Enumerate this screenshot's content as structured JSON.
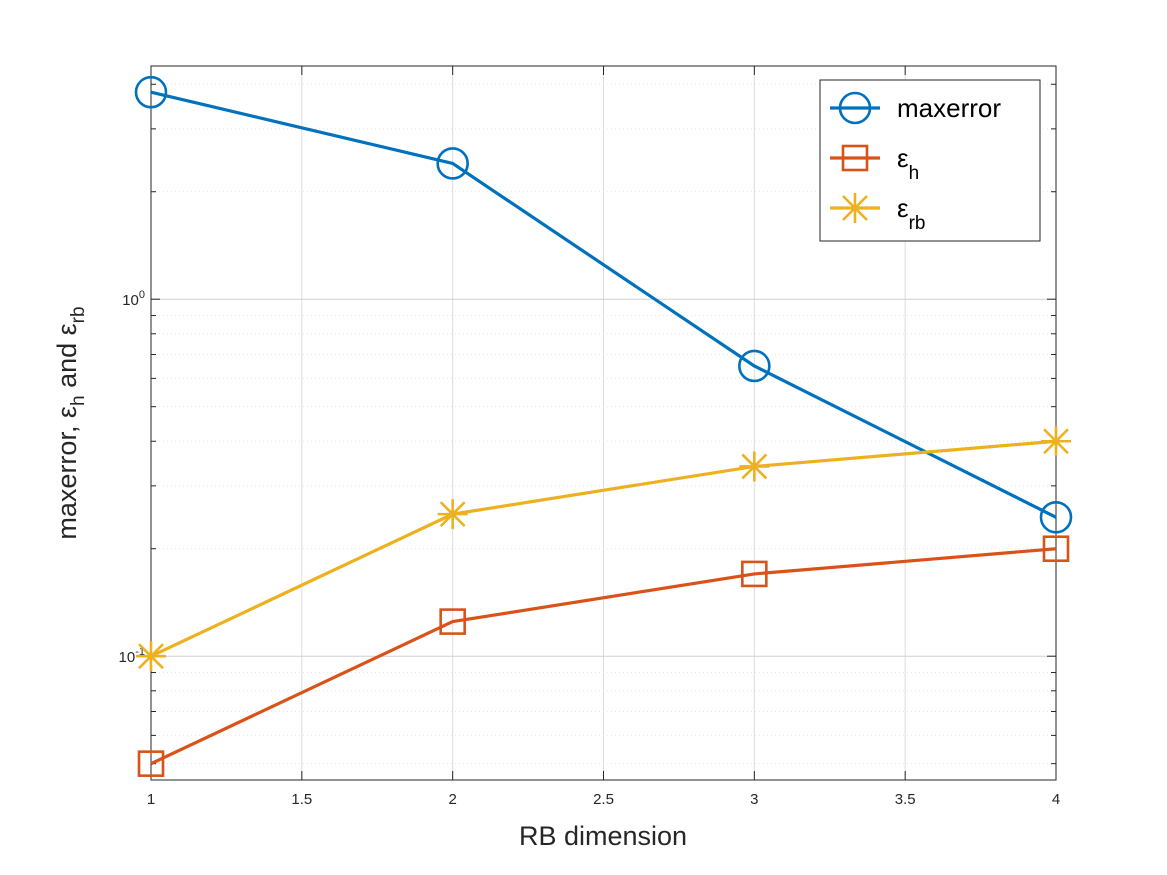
{
  "chart_data": {
    "type": "line",
    "title": "",
    "xlabel": "RB dimension",
    "ylabel": "maxerror, ε_h and ε_rb",
    "ylabel_parts": {
      "lead": "maxerror, ",
      "eps1": "ε",
      "sub1": "h",
      "mid": " and ",
      "eps2": "ε",
      "sub2": "rb"
    },
    "yscale": "log",
    "xlim": [
      1,
      4
    ],
    "ylim": [
      0.045,
      4.5
    ],
    "grid": true,
    "legend_position": "top-right",
    "x_ticks": [
      1,
      1.5,
      2,
      2.5,
      3,
      3.5,
      4
    ],
    "x_tick_labels": [
      "1",
      "1.5",
      "2",
      "2.5",
      "3",
      "3.5",
      "4"
    ],
    "y_major_ticks": [
      {
        "value": 0.1,
        "base": "10",
        "exp": "-1"
      },
      {
        "value": 1,
        "base": "10",
        "exp": "0"
      }
    ],
    "x": [
      1,
      2,
      3,
      4
    ],
    "series": [
      {
        "name": "maxerror",
        "label_main": "maxerror",
        "label_sub": "",
        "color": "#0072BD",
        "marker": "circle",
        "values": [
          3.8,
          2.4,
          0.65,
          0.245
        ]
      },
      {
        "name": "ε_h",
        "label_main": "ε",
        "label_sub": "h",
        "color": "#D95319",
        "marker": "square",
        "values": [
          0.05,
          0.125,
          0.17,
          0.2
        ]
      },
      {
        "name": "ε_rb",
        "label_main": "ε",
        "label_sub": "rb",
        "color": "#EDB120",
        "marker": "asterisk",
        "values": [
          0.1,
          0.25,
          0.34,
          0.4
        ]
      }
    ]
  }
}
